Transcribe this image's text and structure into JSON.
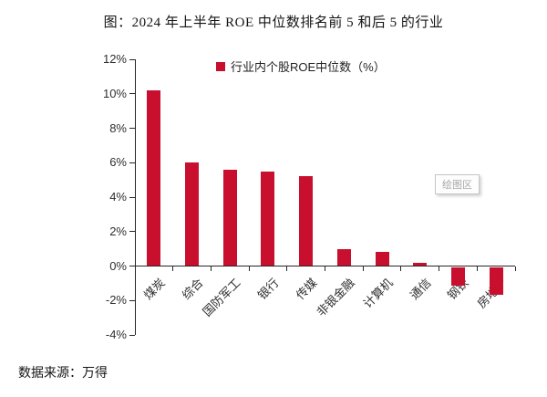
{
  "page": {
    "title": "图：2024 年上半年 ROE 中位数排名前 5 和后 5 的行业",
    "source": "数据来源：万得"
  },
  "legend": {
    "label": "行业内个股ROE中位数（%）"
  },
  "tooltip": {
    "label": "绘图区"
  },
  "colors": {
    "bar": "#C8102E",
    "axis": "#262626",
    "tick_text": "#2e2e2e",
    "tooltip_text": "#a8a8a8"
  },
  "chart_data": {
    "type": "bar",
    "title": "图：2024 年上半年 ROE 中位数排名前 5 和后 5 的行业",
    "legend": [
      "行业内个股ROE中位数（%）"
    ],
    "legend_position": "top-center",
    "categories": [
      "煤炭",
      "综合",
      "国防军工",
      "银行",
      "传媒",
      "非银金融",
      "计算机",
      "通信",
      "钢铁",
      "房地产"
    ],
    "values": [
      10.2,
      6.0,
      5.6,
      5.5,
      5.2,
      1.0,
      0.8,
      0.2,
      -1.1,
      -1.6
    ],
    "ylabel": "",
    "xlabel": "",
    "ylim": [
      -4,
      12
    ],
    "ytick_step": 2,
    "ytick_labels": [
      "12%",
      "10%",
      "8%",
      "6%",
      "4%",
      "2%",
      "0%",
      "-2%",
      "-4%"
    ],
    "grid": false
  }
}
